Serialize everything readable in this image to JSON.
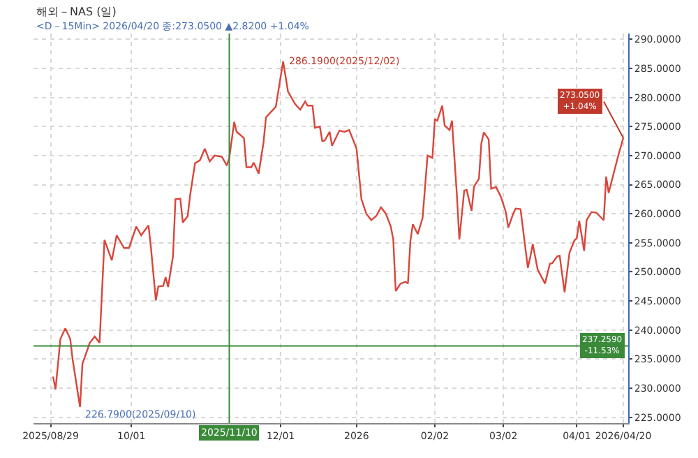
{
  "chart_data": {
    "type": "line",
    "title": "해외－NAS (일)",
    "subtitle": "<D－15Min> 2026/04/20 종:273.0500 ▲2.8200 +1.04%",
    "x": [
      "2025-08-30",
      "2025-08-31",
      "2025-09-02",
      "2025-09-04",
      "2025-09-06",
      "2025-09-07",
      "2025-09-10",
      "2025-09-11",
      "2025-09-14",
      "2025-09-16",
      "2025-09-18",
      "2025-09-20",
      "2025-09-23",
      "2025-09-25",
      "2025-09-28",
      "2025-09-30",
      "2025-10-03",
      "2025-10-05",
      "2025-10-08",
      "2025-10-09",
      "2025-10-11",
      "2025-10-12",
      "2025-10-14",
      "2025-10-15",
      "2025-10-16",
      "2025-10-18",
      "2025-10-19",
      "2025-10-21",
      "2025-10-22",
      "2025-10-24",
      "2025-10-25",
      "2025-10-27",
      "2025-10-29",
      "2025-10-31",
      "2025-11-02",
      "2025-11-04",
      "2025-11-07",
      "2025-11-09",
      "2025-11-10",
      "2025-11-12",
      "2025-11-13",
      "2025-11-16",
      "2025-11-17",
      "2025-11-19",
      "2025-11-20",
      "2025-11-22",
      "2025-11-24",
      "2025-11-25",
      "2025-11-29",
      "2025-12-02",
      "2025-12-04",
      "2025-12-07",
      "2025-12-09",
      "2025-12-11",
      "2025-12-12",
      "2025-12-14",
      "2025-12-15",
      "2025-12-17",
      "2025-12-18",
      "2025-12-19",
      "2025-12-21",
      "2025-12-22",
      "2025-12-25",
      "2025-12-27",
      "2025-12-29",
      "2026-01-01",
      "2026-01-03",
      "2026-01-05",
      "2026-01-07",
      "2026-01-09",
      "2026-01-11",
      "2026-01-13",
      "2026-01-15",
      "2026-01-16",
      "2026-01-17",
      "2026-01-19",
      "2026-01-21",
      "2026-01-22",
      "2026-01-23",
      "2026-01-24",
      "2026-01-26",
      "2026-01-28",
      "2026-01-30",
      "2026-02-01",
      "2026-02-02",
      "2026-02-03",
      "2026-02-05",
      "2026-02-06",
      "2026-02-08",
      "2026-02-09",
      "2026-02-11",
      "2026-02-12",
      "2026-02-14",
      "2026-02-15",
      "2026-02-17",
      "2026-02-18",
      "2026-02-20",
      "2026-02-21",
      "2026-02-22",
      "2026-02-24",
      "2026-02-25",
      "2026-02-27",
      "2026-03-01",
      "2026-03-03",
      "2026-03-04",
      "2026-03-06",
      "2026-03-07",
      "2026-03-09",
      "2026-03-12",
      "2026-03-13",
      "2026-03-14",
      "2026-03-16",
      "2026-03-19",
      "2026-03-21",
      "2026-03-22",
      "2026-03-24",
      "2026-03-25",
      "2026-03-27",
      "2026-03-29",
      "2026-03-31",
      "2026-04-01",
      "2026-04-02",
      "2026-04-04",
      "2026-04-05",
      "2026-04-07",
      "2026-04-09",
      "2026-04-11",
      "2026-04-12",
      "2026-04-13",
      "2026-04-14",
      "2026-04-18",
      "2026-04-20"
    ],
    "series": [
      {
        "color": "#d9463b",
        "values": [
          232.0,
          229.8,
          238.5,
          240.3,
          238.5,
          234.9,
          226.79,
          234.2,
          237.8,
          238.9,
          237.8,
          255.5,
          252.0,
          256.3,
          254.1,
          254.1,
          257.8,
          256.3,
          258.0,
          254.1,
          245.1,
          247.5,
          247.6,
          249.1,
          247.4,
          252.7,
          262.5,
          262.6,
          258.5,
          259.6,
          263.2,
          268.7,
          269.2,
          271.2,
          269.0,
          270.0,
          269.8,
          268.3,
          269.6,
          275.8,
          274.1,
          273.0,
          268.0,
          268.0,
          268.8,
          266.9,
          272.3,
          276.6,
          278.4,
          286.19,
          281.0,
          278.8,
          277.9,
          279.3,
          278.6,
          278.6,
          274.8,
          275.0,
          272.5,
          272.6,
          274.1,
          271.7,
          274.3,
          274.1,
          274.4,
          271.2,
          262.5,
          260.0,
          258.9,
          259.6,
          261.1,
          260.0,
          257.8,
          255.6,
          246.7,
          248.0,
          248.3,
          248.0,
          255.3,
          258.2,
          256.5,
          259.3,
          270.0,
          269.6,
          276.3,
          276.0,
          278.6,
          275.2,
          274.4,
          276.0,
          263.2,
          255.6,
          264.0,
          264.1,
          260.5,
          264.7,
          266.0,
          272.1,
          274.0,
          272.8,
          264.3,
          264.6,
          262.9,
          260.3,
          257.6,
          260.0,
          260.9,
          260.8,
          250.7,
          252.6,
          254.8,
          250.4,
          248.0,
          251.4,
          251.5,
          252.7,
          252.8,
          246.5,
          253.3,
          255.4,
          255.8,
          258.8,
          253.6,
          258.9,
          260.3,
          260.2,
          259.3,
          258.9,
          266.4,
          263.6,
          270.1,
          273.05
        ]
      }
    ],
    "xlim": [
      "2025-08-22",
      "2026-04-22"
    ],
    "xticks": [
      {
        "value": "2025-08-29",
        "label": "2025/08/29"
      },
      {
        "value": "2025-10-01",
        "label": "10/01"
      },
      {
        "value": "2025-12-01",
        "label": "12/01"
      },
      {
        "value": "2026-01-01",
        "label": "2026"
      },
      {
        "value": "2026-02-02",
        "label": "02/02"
      },
      {
        "value": "2026-03-02",
        "label": "03/02"
      },
      {
        "value": "2026-04-01",
        "label": "04/01"
      },
      {
        "value": "2026-04-20",
        "label": "2026/04/20"
      }
    ],
    "ylim": [
      224,
      291
    ],
    "yticks": [
      {
        "value": 225,
        "label": "225.0000"
      },
      {
        "value": 230,
        "label": "230.0000"
      },
      {
        "value": 235,
        "label": "235.0000"
      },
      {
        "value": 240,
        "label": "240.0000"
      },
      {
        "value": 245,
        "label": "245.0000"
      },
      {
        "value": 250,
        "label": "250.0000"
      },
      {
        "value": 255,
        "label": "255.0000"
      },
      {
        "value": 260,
        "label": "260.0000"
      },
      {
        "value": 265,
        "label": "265.0000"
      },
      {
        "value": 270,
        "label": "270.0000"
      },
      {
        "value": 275,
        "label": "275.0000"
      },
      {
        "value": 280,
        "label": "280.0000"
      },
      {
        "value": 285,
        "label": "285.0000"
      },
      {
        "value": 290,
        "label": "290.0000"
      }
    ],
    "ref_lines": [
      {
        "axis": "x",
        "value": "2025-11-10",
        "label": "2025/11/10",
        "color": "#3a8a3a"
      },
      {
        "axis": "y",
        "value": 237.259,
        "label": "237.2590 -11.53%",
        "color": "#3a8a3a"
      }
    ],
    "annotations": [
      {
        "text": "286.1900(2025/12/02)",
        "x": "2025-12-02",
        "y": 286.19
      },
      {
        "text": "226.7900(2025/09/10)",
        "x": "2025-09-10",
        "y": 226.79
      },
      {
        "text": "273.0500 +1.04%",
        "x": "2026-04-20",
        "y": 273.05
      }
    ],
    "grid": true,
    "marker": "none",
    "line_style": "solid"
  }
}
